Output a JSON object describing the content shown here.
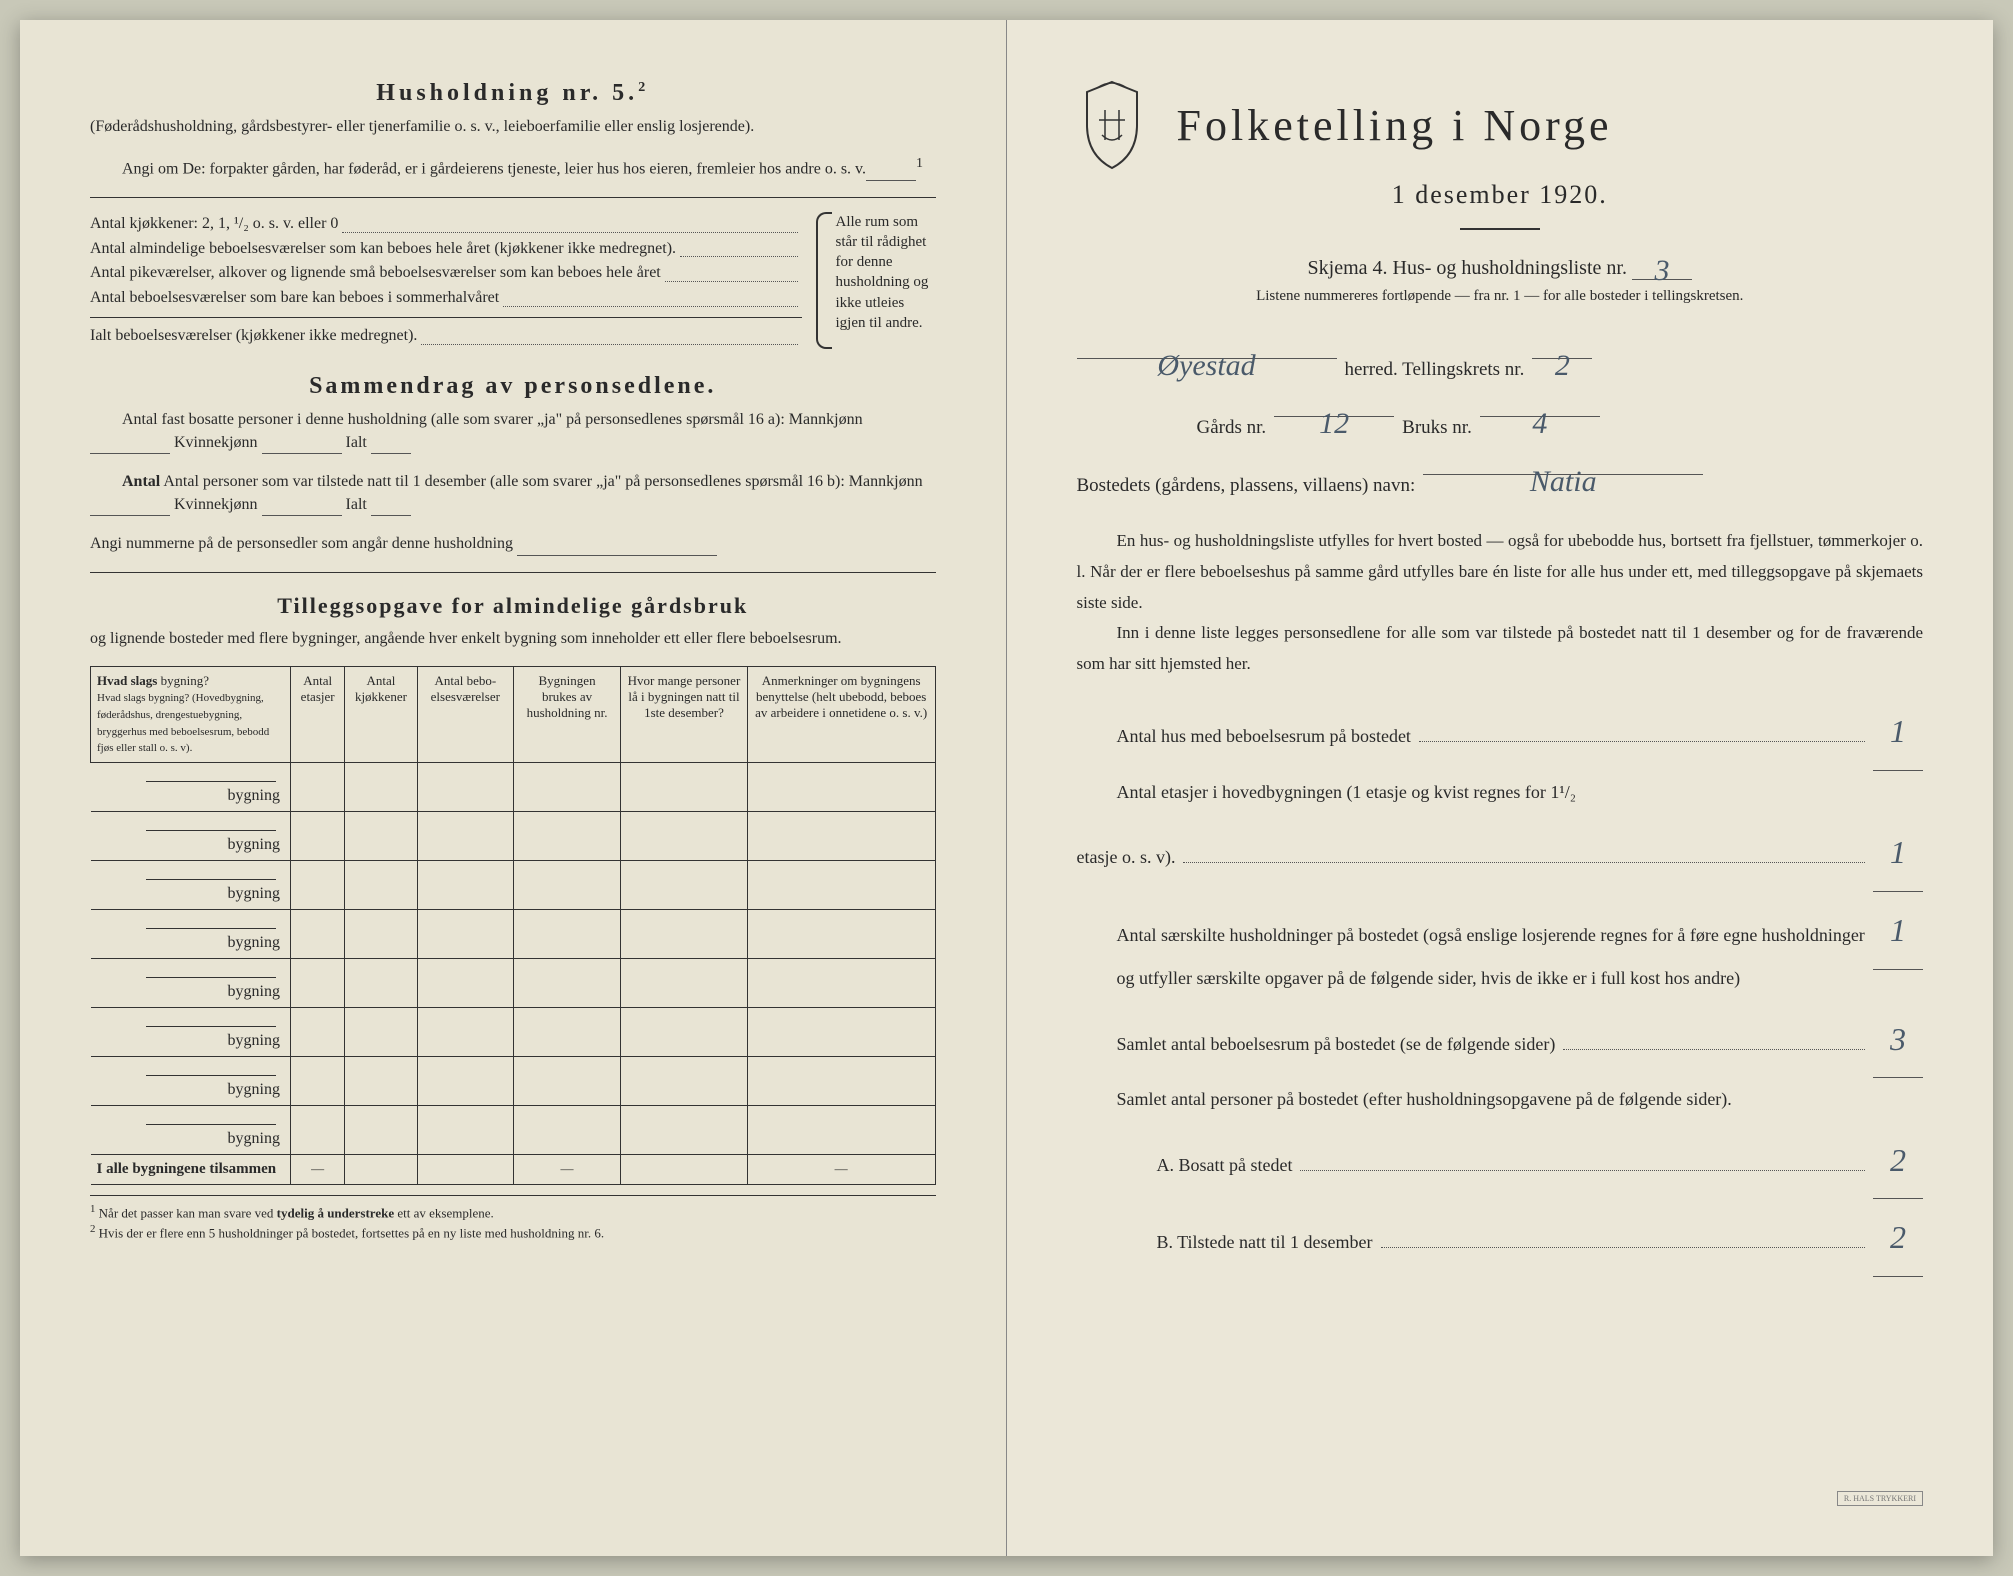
{
  "left": {
    "husholdning_title": "Husholdning nr. 5.",
    "husholdning_sup": "2",
    "husholdning_intro": "(Føderådshusholdning, gårdsbestyrer- eller tjenerfamilie o. s. v., leieboerfamilie eller enslig losjerende).",
    "angi_om": "Angi om De: forpakter gården, har føderåd, er i gårdeierens tjeneste, leier hus hos eieren, fremleier hos andre o. s. v.",
    "antal_rows": [
      "Antal kjøkkener: 2, 1, ¹/₂ o. s. v. eller 0",
      "Antal almindelige beboelsesværelser som kan beboes hele året (kjøkkener ikke medregnet).",
      "Antal pikeværelser, alkover og lignende små beboelsesværelser som kan beboes hele året",
      "Antal beboelsesværelser som bare kan beboes i sommerhalvåret",
      "Ialt beboelsesværelser (kjøkkener ikke medregnet)."
    ],
    "brace_text": "Alle rum som står til rådighet for denne husholdning og ikke utleies igjen til andre.",
    "sammendrag_title": "Sammendrag av personsedlene.",
    "sammendrag_l1": "Antal fast bosatte personer i denne husholdning (alle som svarer „ja\" på personsedlenes spørsmål 16 a): Mannkjønn",
    "kvinnekjonn": "Kvinnekjønn",
    "ialt": "Ialt",
    "sammendrag_l2": "Antal personer som var tilstede natt til 1 desember (alle som svarer „ja\" på personsedlenes spørsmål 16 b): Mannkjønn",
    "sammendrag_l3": "Angi nummerne på de personsedler som angår denne husholdning",
    "tillegg_title": "Tilleggsopgave for almindelige gårdsbruk",
    "tillegg_intro": "og lignende bosteder med flere bygninger, angående hver enkelt bygning som inneholder ett eller flere beboelsesrum.",
    "table": {
      "headers": [
        "Hvad slags bygning?\n(Hovedbygning, føderådshus, drengestuebygning, bryggerhus med beboelsesrum, bebodd fjøs eller stall o. s. v).",
        "Antal etasjer",
        "Antal kjøkkener",
        "Antal bebo-elsesværelser",
        "Bygningen brukes av husholdning nr.",
        "Hvor mange personer lå i bygningen natt til 1ste desember?",
        "Anmerkninger om bygningens benyttelse (helt ubebodd, beboes av arbeidere i onnetidene o. s. v.)"
      ],
      "row_label": "bygning",
      "row_count": 8,
      "total_label": "I alle bygningene tilsammen",
      "dash": "—"
    },
    "footnote": "Når det passer kan man svare ved tydelig å understreke ett av eksemplene.\nHvis der er flere enn 5 husholdninger på bostedet, fortsettes på en ny liste med husholdning nr. 6."
  },
  "right": {
    "title": "Folketelling i Norge",
    "subtitle": "1 desember 1920.",
    "skjema": "Skjema 4.   Hus- og husholdningsliste nr.",
    "liste_nr": "3",
    "list_note": "Listene nummereres fortløpende — fra nr. 1 — for alle bosteder i tellingskretsen.",
    "herred_label": "herred.   Tellingskrets nr.",
    "herred_value": "Øyestad",
    "krets_nr": "2",
    "gards_label": "Gårds nr.",
    "gards_nr": "12",
    "bruks_label": "Bruks nr.",
    "bruks_nr": "4",
    "bosted_label": "Bostedets (gårdens, plassens, villaens) navn:",
    "bosted_value": "Natia",
    "para1": "En hus- og husholdningsliste utfylles for hvert bosted — også for ubebodde hus, bortsett fra fjellstuer, tømmerkojer o. l. Når der er flere beboelseshus på samme gård utfylles bare én liste for alle hus under ett, med tilleggsopgave på skjemaets siste side.",
    "para2": "Inn i denne liste legges personsedlene for alle som var tilstede på bostedet natt til 1 desember og for de fraværende som har sitt hjemsted her.",
    "q1": "Antal hus med beboelsesrum på bostedet",
    "q1_val": "1",
    "q2a": "Antal etasjer i hovedbygningen (1 etasje og kvist regnes for 1¹/₂",
    "q2b": "etasje o. s. v).",
    "q2_val": "1",
    "q3": "Antal særskilte husholdninger på bostedet (også enslige losjerende regnes for å føre egne husholdninger og utfyller særskilte opgaver på de følgende sider, hvis de ikke er i full kost hos andre)",
    "q3_val": "1",
    "q4": "Samlet antal beboelsesrum på bostedet (se de følgende sider)",
    "q4_val": "3",
    "q5": "Samlet antal personer på bostedet (efter husholdningsopgavene på de følgende sider).",
    "q5a_label": "A.   Bosatt på stedet",
    "q5a_val": "2",
    "q5b_label": "B.   Tilstede natt til 1 desember",
    "q5b_val": "2",
    "stamp": "R. HALS TRYKKERI"
  }
}
